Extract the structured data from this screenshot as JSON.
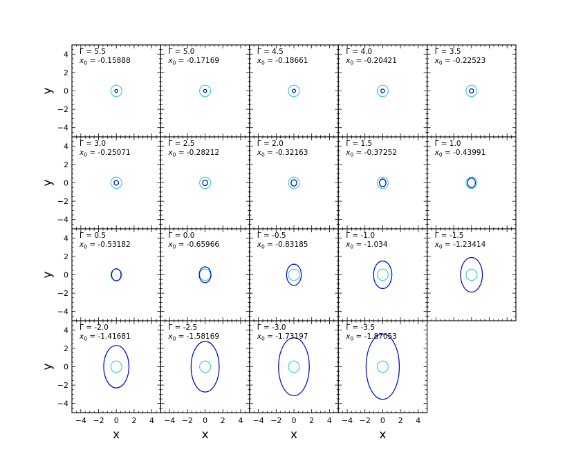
{
  "chart_data": {
    "type": "scatter",
    "grid": false,
    "layout": {
      "rows": 4,
      "cols": 5
    },
    "xlabel": "x",
    "ylabel": "y",
    "xlim": [
      -5,
      5
    ],
    "ylim": [
      -5,
      5
    ],
    "xticks": [
      -4,
      -2,
      0,
      2,
      4
    ],
    "yticks": [
      -4,
      -2,
      0,
      2,
      4
    ],
    "gamma_label": "Γ = ",
    "x0_label": " = ",
    "colors": {
      "inner_circle": "#40d0c8",
      "orbit": "#0010d0"
    },
    "inner_circle_radius": 0.62,
    "panels": [
      {
        "gamma": "5.5",
        "x0": "-0.15888",
        "orbit_rx": 0.16,
        "orbit_ry": 0.16
      },
      {
        "gamma": "5.0",
        "x0": "-0.17169",
        "orbit_rx": 0.17,
        "orbit_ry": 0.17
      },
      {
        "gamma": "4.5",
        "x0": "-0.18661",
        "orbit_rx": 0.19,
        "orbit_ry": 0.19
      },
      {
        "gamma": "4.0",
        "x0": "-0.20421",
        "orbit_rx": 0.2,
        "orbit_ry": 0.2
      },
      {
        "gamma": "3.5",
        "x0": "-0.22523",
        "orbit_rx": 0.23,
        "orbit_ry": 0.23
      },
      {
        "gamma": "3.0",
        "x0": "-0.25071",
        "orbit_rx": 0.25,
        "orbit_ry": 0.26
      },
      {
        "gamma": "2.5",
        "x0": "-0.28212",
        "orbit_rx": 0.28,
        "orbit_ry": 0.3
      },
      {
        "gamma": "2.0",
        "x0": "-0.32163",
        "orbit_rx": 0.32,
        "orbit_ry": 0.35
      },
      {
        "gamma": "1.5",
        "x0": "-0.37252",
        "orbit_rx": 0.37,
        "orbit_ry": 0.42
      },
      {
        "gamma": "1.0",
        "x0": "-0.43991",
        "orbit_rx": 0.44,
        "orbit_ry": 0.52
      },
      {
        "gamma": "0.5",
        "x0": "-0.53182",
        "orbit_rx": 0.53,
        "orbit_ry": 0.66
      },
      {
        "gamma": "0.0",
        "x0": "-0.65966",
        "orbit_rx": 0.66,
        "orbit_ry": 0.86
      },
      {
        "gamma": "-0.5",
        "x0": "-0.83185",
        "orbit_rx": 0.83,
        "orbit_ry": 1.15
      },
      {
        "gamma": "-1.0",
        "x0": "-1.034",
        "orbit_rx": 1.03,
        "orbit_ry": 1.5
      },
      {
        "gamma": "-1.5",
        "x0": "-1.23414",
        "orbit_rx": 1.23,
        "orbit_ry": 1.88
      },
      {
        "gamma": "-2.0",
        "x0": "-1.41681",
        "orbit_rx": 1.42,
        "orbit_ry": 2.3
      },
      {
        "gamma": "-2.5",
        "x0": "-1.58169",
        "orbit_rx": 1.58,
        "orbit_ry": 2.75
      },
      {
        "gamma": "-3.0",
        "x0": "-1.73197",
        "orbit_rx": 1.73,
        "orbit_ry": 3.15
      },
      {
        "gamma": "-3.5",
        "x0": "-1.87053",
        "orbit_rx": 1.87,
        "orbit_ry": 3.55
      }
    ]
  }
}
